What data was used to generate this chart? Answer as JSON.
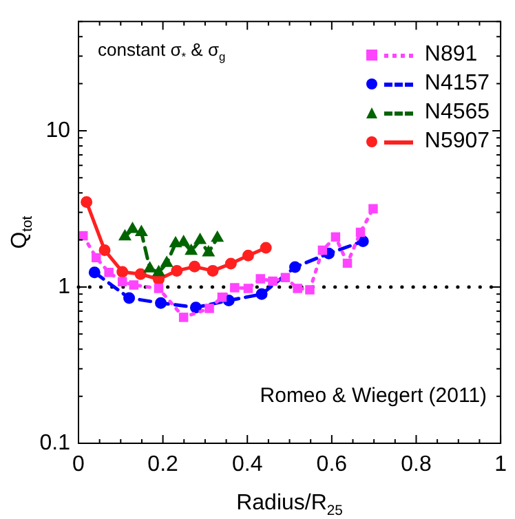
{
  "chart_data": {
    "type": "line",
    "xlabel": "Radius/R$_{25}$",
    "ylabel": "Q$_{tot}$",
    "annotations": [
      "constant σ$_{*}$ & σ$_{g}$",
      "Romeo & Wiegert (2011)"
    ],
    "log": "y",
    "xlim": [
      0,
      1
    ],
    "ylim": [
      0.1,
      50
    ],
    "xticks": [
      0,
      {
        "value": 0.05,
        "label": null
      },
      {
        "value": 0.1,
        "label": null
      },
      {
        "value": 0.15,
        "label": null
      },
      0.2,
      {
        "value": 0.25,
        "label": null
      },
      {
        "value": 0.3,
        "label": null
      },
      {
        "value": 0.35,
        "label": null
      },
      0.4,
      {
        "value": 0.45,
        "label": null
      },
      {
        "value": 0.5,
        "label": null
      },
      {
        "value": 0.55,
        "label": null
      },
      0.6,
      {
        "value": 0.65,
        "label": null
      },
      {
        "value": 0.7,
        "label": null
      },
      {
        "value": 0.75,
        "label": null
      },
      0.8,
      {
        "value": 0.85,
        "label": null
      },
      {
        "value": 0.9,
        "label": null
      },
      {
        "value": 0.95,
        "label": null
      },
      1
    ],
    "yticks": [
      0.1,
      {
        "value": 0.2,
        "label": null
      },
      {
        "value": 0.3,
        "label": null
      },
      {
        "value": 0.4,
        "label": null
      },
      {
        "value": 0.5,
        "label": null
      },
      {
        "value": 0.6,
        "label": null
      },
      {
        "value": 0.7,
        "label": null
      },
      {
        "value": 0.8,
        "label": null
      },
      {
        "value": 0.9,
        "label": null
      },
      1,
      {
        "value": 2,
        "label": null
      },
      {
        "value": 3,
        "label": null
      },
      {
        "value": 4,
        "label": null
      },
      {
        "value": 5,
        "label": null
      },
      {
        "value": 6,
        "label": null
      },
      {
        "value": 7,
        "label": null
      },
      {
        "value": 8,
        "label": null
      },
      {
        "value": 9,
        "label": null
      },
      10,
      {
        "value": 20,
        "label": null
      },
      {
        "value": 30,
        "label": null
      },
      {
        "value": 40,
        "label": null
      },
      {
        "value": 50,
        "label": null
      }
    ],
    "grid": false,
    "legend": "top right",
    "ref_lines": [
      {
        "axis": "y",
        "value": 1,
        "color": "#000000",
        "line_style": "dotted"
      }
    ],
    "series": [
      {
        "name": "N891",
        "color": "#ff44ff",
        "marker": "square",
        "line_style": "dotted",
        "x": [
          0.011,
          0.042,
          0.072,
          0.104,
          0.131,
          0.19,
          0.249,
          0.31,
          0.34,
          0.37,
          0.402,
          0.431,
          0.46,
          0.49,
          0.519,
          0.548,
          0.578,
          0.609,
          0.637,
          0.668,
          0.698
        ],
        "values": [
          2.13,
          1.54,
          1.24,
          1.08,
          1.03,
          0.98,
          0.64,
          0.73,
          0.86,
          0.99,
          0.98,
          1.13,
          1.09,
          1.15,
          0.98,
          0.96,
          1.72,
          2.09,
          1.42,
          2.24,
          3.17
        ]
      },
      {
        "name": "N4157",
        "color": "#0000ff",
        "marker": "circle",
        "line_style": "dashed",
        "x": [
          0.038,
          0.12,
          0.195,
          0.278,
          0.356,
          0.434,
          0.513,
          0.593,
          0.674
        ],
        "values": [
          1.24,
          0.85,
          0.79,
          0.74,
          0.82,
          0.9,
          1.34,
          1.64,
          1.96
        ]
      },
      {
        "name": "N4565",
        "color": "#006400",
        "marker": "triangle",
        "line_style": "dashed",
        "x": [
          0.11,
          0.128,
          0.149,
          0.169,
          0.19,
          0.209,
          0.23,
          0.249,
          0.267,
          0.288,
          0.308,
          0.329
        ],
        "values": [
          2.1,
          2.34,
          2.24,
          1.31,
          1.24,
          1.42,
          1.9,
          1.93,
          1.7,
          1.99,
          1.66,
          2.06
        ]
      },
      {
        "name": "N5907",
        "color": "#ff2020",
        "marker": "circle",
        "line_style": "solid",
        "x": [
          0.019,
          0.062,
          0.104,
          0.147,
          0.19,
          0.233,
          0.275,
          0.318,
          0.361,
          0.402,
          0.444
        ],
        "values": [
          3.5,
          1.72,
          1.25,
          1.21,
          1.12,
          1.27,
          1.35,
          1.27,
          1.41,
          1.59,
          1.78
        ]
      }
    ]
  }
}
